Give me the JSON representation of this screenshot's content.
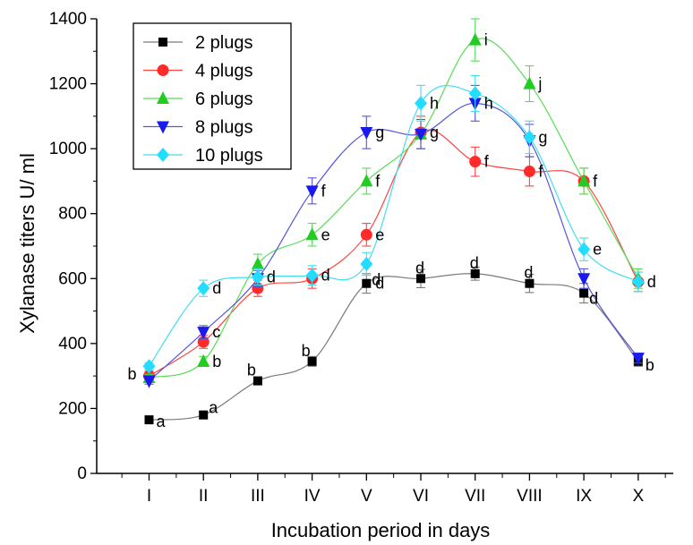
{
  "chart_data": {
    "type": "line",
    "title": "",
    "xlabel": "Incubation period in days",
    "ylabel": "Xylanase titers U/ ml",
    "ylim": [
      0,
      1400
    ],
    "yticks": [
      0,
      200,
      400,
      600,
      800,
      1000,
      1200,
      1400
    ],
    "categories": [
      "I",
      "II",
      "III",
      "IV",
      "V",
      "VI",
      "VII",
      "VIII",
      "IX",
      "X"
    ],
    "legend_position": "top-left",
    "series": [
      {
        "name": "2 plugs",
        "color": "#7a7a7a",
        "marker_color": "#000000",
        "marker": "square",
        "values": [
          165,
          180,
          285,
          345,
          585,
          600,
          615,
          585,
          555,
          345
        ],
        "errors": [
          8,
          10,
          12,
          15,
          30,
          28,
          20,
          28,
          30,
          15
        ],
        "labels": [
          "a",
          "a",
          "b",
          "b",
          "d",
          "d",
          "d",
          "d",
          "d",
          "b"
        ]
      },
      {
        "name": "4 plugs",
        "color": "#ff4444",
        "marker_color": "#ff2a2a",
        "marker": "circle",
        "values": [
          300,
          405,
          570,
          600,
          735,
          1050,
          960,
          930,
          900,
          590
        ],
        "errors": [
          15,
          20,
          25,
          30,
          35,
          50,
          45,
          45,
          40,
          30
        ],
        "labels": [
          "",
          "",
          "",
          "",
          "e",
          "g",
          "f",
          "f",
          "f",
          ""
        ]
      },
      {
        "name": "6 plugs",
        "color": "#55dd55",
        "marker_color": "#22cc22",
        "marker": "triangle-up",
        "values": [
          295,
          345,
          645,
          735,
          900,
          1045,
          1335,
          1200,
          900,
          600
        ],
        "errors": [
          10,
          15,
          30,
          35,
          40,
          45,
          65,
          55,
          40,
          30
        ],
        "labels": [
          "",
          "b",
          "",
          "e",
          "f",
          "",
          "i",
          "j",
          "",
          ""
        ]
      },
      {
        "name": "8 plugs",
        "color": "#5555dd",
        "marker_color": "#1a1aee",
        "marker": "triangle-down",
        "values": [
          285,
          435,
          600,
          870,
          1050,
          1045,
          1140,
          1025,
          600,
          355
        ],
        "errors": [
          10,
          20,
          25,
          40,
          50,
          45,
          55,
          50,
          30,
          15
        ],
        "labels": [
          "",
          "c",
          "",
          "f",
          "g",
          "",
          "h",
          "",
          "",
          ""
        ]
      },
      {
        "name": "10 plugs",
        "color": "#44ddee",
        "marker_color": "#22ddff",
        "marker": "diamond",
        "values": [
          330,
          570,
          605,
          610,
          645,
          1140,
          1170,
          1035,
          690,
          590
        ],
        "errors": [
          10,
          25,
          25,
          30,
          35,
          55,
          55,
          50,
          35,
          30
        ],
        "labels": [
          "",
          "d",
          "",
          "",
          "",
          "h",
          "",
          "g",
          "e",
          ""
        ]
      }
    ],
    "point_group_labels": [
      "b",
      "",
      "d",
      "d",
      "d",
      "",
      "",
      "",
      "",
      "d"
    ]
  }
}
